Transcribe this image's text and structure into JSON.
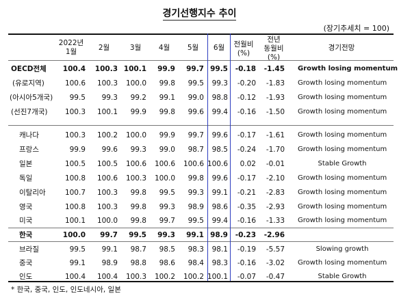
{
  "title": "경기선행지수 추이",
  "unit": "(장기추세치 = 100)",
  "headers": {
    "jan": "2022년\n1월",
    "feb": "2월",
    "mar": "3월",
    "apr": "4월",
    "may": "5월",
    "jun": "6월",
    "mom": "전월비\n(%)",
    "yoy": "전년\n동월비\n(%)",
    "outlook": "경기전망"
  },
  "rows": [
    {
      "name": "OECD전체",
      "v": [
        "100.4",
        "100.3",
        "100.1",
        "99.9",
        "99.7",
        "99.5"
      ],
      "mom": "-0.18",
      "yoy": "-1.45",
      "outlook": "Growth losing momentum",
      "bold": true
    },
    {
      "name": "(유로지역)",
      "v": [
        "100.6",
        "100.3",
        "100.0",
        "99.8",
        "99.5",
        "99.3"
      ],
      "mom": "-0.20",
      "yoy": "-1.83",
      "outlook": "Growth losing momentum",
      "bold": false
    },
    {
      "name": "(아시아5개국)",
      "v": [
        "99.5",
        "99.3",
        "99.2",
        "99.1",
        "99.0",
        "98.8"
      ],
      "mom": "-0.12",
      "yoy": "-1.93",
      "outlook": "Growth losing momentum",
      "bold": false
    },
    {
      "name": "(선진7개국)",
      "v": [
        "100.3",
        "100.1",
        "99.9",
        "99.8",
        "99.6",
        "99.4"
      ],
      "mom": "-0.16",
      "yoy": "-1.50",
      "outlook": "Growth losing momentum",
      "bold": false
    },
    {
      "name": "캐나다",
      "v": [
        "100.3",
        "100.2",
        "100.0",
        "99.9",
        "99.7",
        "99.6"
      ],
      "mom": "-0.17",
      "yoy": "-1.61",
      "outlook": "Growth losing momentum",
      "bold": false
    },
    {
      "name": "프랑스",
      "v": [
        "99.9",
        "99.6",
        "99.3",
        "99.0",
        "98.7",
        "98.5"
      ],
      "mom": "-0.24",
      "yoy": "-1.70",
      "outlook": "Growth losing momentum",
      "bold": false
    },
    {
      "name": "일본",
      "v": [
        "100.5",
        "100.5",
        "100.6",
        "100.6",
        "100.6",
        "100.6"
      ],
      "mom": "0.02",
      "yoy": "-0.01",
      "outlook": "Stable Growth",
      "bold": false
    },
    {
      "name": "독일",
      "v": [
        "100.8",
        "100.6",
        "100.3",
        "100.0",
        "99.8",
        "99.6"
      ],
      "mom": "-0.17",
      "yoy": "-2.10",
      "outlook": "Growth losing momentum",
      "bold": false
    },
    {
      "name": "이탈리아",
      "v": [
        "100.7",
        "100.3",
        "99.8",
        "99.5",
        "99.3",
        "99.1"
      ],
      "mom": "-0.21",
      "yoy": "-2.83",
      "outlook": "Growth losing momentum",
      "bold": false
    },
    {
      "name": "영국",
      "v": [
        "100.8",
        "100.3",
        "99.8",
        "99.3",
        "98.9",
        "98.6"
      ],
      "mom": "-0.35",
      "yoy": "-2.93",
      "outlook": "Growth losing momentum",
      "bold": false
    },
    {
      "name": "미국",
      "v": [
        "100.1",
        "100.0",
        "99.8",
        "99.7",
        "99.5",
        "99.4"
      ],
      "mom": "-0.16",
      "yoy": "-1.33",
      "outlook": "Growth losing momentum",
      "bold": false
    },
    {
      "name": "한국",
      "v": [
        "100.0",
        "99.7",
        "99.5",
        "99.3",
        "99.1",
        "98.9"
      ],
      "mom": "-0.23",
      "yoy": "-2.96",
      "outlook": "",
      "bold": true
    },
    {
      "name": "브라질",
      "v": [
        "99.5",
        "99.1",
        "98.7",
        "98.5",
        "98.3",
        "98.1"
      ],
      "mom": "-0.19",
      "yoy": "-5.57",
      "outlook": "Slowing growth",
      "bold": false
    },
    {
      "name": "중국",
      "v": [
        "99.1",
        "98.9",
        "98.8",
        "98.6",
        "98.4",
        "98.3"
      ],
      "mom": "-0.16",
      "yoy": "-3.02",
      "outlook": "Growth losing momentum",
      "bold": false
    },
    {
      "name": "인도",
      "v": [
        "100.4",
        "100.4",
        "100.3",
        "100.2",
        "100.2",
        "100.1"
      ],
      "mom": "-0.07",
      "yoy": "-0.47",
      "outlook": "Stable Growth",
      "bold": false
    }
  ],
  "footnote": "* 한국, 중국, 인도, 인도네시아, 일본"
}
